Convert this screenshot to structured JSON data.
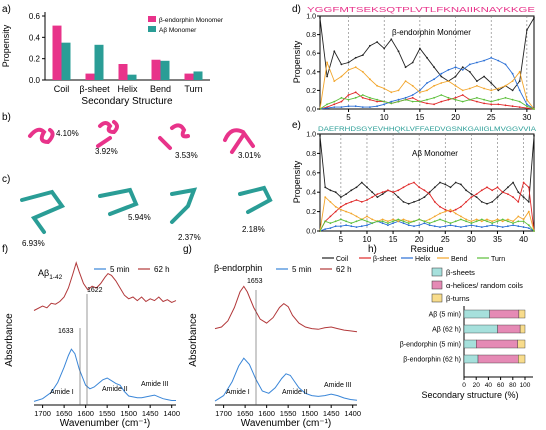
{
  "panel_labels": {
    "a": "a)",
    "b": "b)",
    "c": "c)",
    "d": "d)",
    "e": "e)",
    "f": "f)",
    "g": "g)",
    "h": "h)"
  },
  "colors": {
    "pink": "#e8338a",
    "teal": "#2a9d96",
    "coil": "#222222",
    "sheet": "#e02828",
    "helix": "#2a6fd6",
    "bend": "#f2a52a",
    "turn": "#5cbf3a",
    "ftir_blue": "#3a86d8",
    "ftir_red": "#b2383a",
    "h_sheet": "#a6e0dc",
    "h_helix": "#e58ab5",
    "h_turn": "#f8dc8c"
  },
  "structures": {
    "b": [
      "4.10%",
      "3.92%",
      "3.53%",
      "3.01%"
    ],
    "c": [
      "6.93%",
      "5.94%",
      "2.37%",
      "2.18%"
    ]
  },
  "chart_data": [
    {
      "panel": "a",
      "type": "bar",
      "categories": [
        "Coil",
        "β-sheet",
        "Helix",
        "Bend",
        "Turn"
      ],
      "series": [
        {
          "name": "β-endorphin Monomer",
          "values": [
            0.51,
            0.06,
            0.15,
            0.19,
            0.06
          ]
        },
        {
          "name": "Aβ Monomer",
          "values": [
            0.35,
            0.33,
            0.05,
            0.18,
            0.08
          ]
        }
      ],
      "xlabel": "Secondary Structure",
      "ylabel": "Propensity",
      "yticks": [
        "0.0",
        "0.2",
        "0.4",
        "0.6"
      ],
      "ylim": [
        0,
        0.6
      ],
      "legend": "top-right"
    },
    {
      "panel": "d",
      "type": "line",
      "title": "β-endorphin Monomer",
      "sequence": "YGGFMTSEKSQTPLVTLFKNAIIKNAYKKGE",
      "xlabel": "",
      "ylabel": "Propensity",
      "xticks": [
        "5",
        "10",
        "15",
        "20",
        "25",
        "30"
      ],
      "yticks": [
        "0.0",
        "0.2",
        "0.4",
        "0.6",
        "0.8",
        "1.0"
      ],
      "xlim": [
        1,
        31
      ],
      "ylim": [
        0,
        1
      ],
      "series": [
        {
          "name": "Coil",
          "values": [
            0.98,
            0.35,
            0.62,
            0.48,
            0.5,
            0.55,
            0.58,
            0.68,
            0.72,
            0.65,
            0.75,
            0.62,
            0.45,
            0.5,
            0.65,
            0.55,
            0.45,
            0.35,
            0.3,
            0.35,
            0.45,
            0.4,
            0.3,
            0.35,
            0.28,
            0.2,
            0.25,
            0.2,
            0.3,
            0.85,
            0.98
          ]
        },
        {
          "name": "β-sheet",
          "values": [
            0,
            0.02,
            0.05,
            0.08,
            0.15,
            0.18,
            0.12,
            0.1,
            0.08,
            0.08,
            0.06,
            0.08,
            0.1,
            0.12,
            0.08,
            0.06,
            0.05,
            0.08,
            0.1,
            0.12,
            0.15,
            0.1,
            0.08,
            0.06,
            0.05,
            0.05,
            0.04,
            0.03,
            0.02,
            0.01,
            0
          ]
        },
        {
          "name": "Helix",
          "values": [
            0,
            0.01,
            0.02,
            0.02,
            0.03,
            0.03,
            0.02,
            0.02,
            0.03,
            0.05,
            0.08,
            0.1,
            0.12,
            0.15,
            0.2,
            0.28,
            0.32,
            0.38,
            0.42,
            0.45,
            0.42,
            0.48,
            0.5,
            0.52,
            0.55,
            0.52,
            0.48,
            0.38,
            0.2,
            0.05,
            0
          ]
        },
        {
          "name": "Bend",
          "values": [
            0,
            0.5,
            0.3,
            0.35,
            0.42,
            0.45,
            0.4,
            0.32,
            0.25,
            0.22,
            0.18,
            0.2,
            0.3,
            0.25,
            0.18,
            0.2,
            0.25,
            0.28,
            0.3,
            0.25,
            0.2,
            0.22,
            0.25,
            0.22,
            0.2,
            0.22,
            0.25,
            0.3,
            0.4,
            0.1,
            0
          ]
        },
        {
          "name": "Turn",
          "values": [
            0,
            0.05,
            0.08,
            0.12,
            0.1,
            0.12,
            0.15,
            0.12,
            0.1,
            0.08,
            0.06,
            0.08,
            0.1,
            0.08,
            0.08,
            0.1,
            0.12,
            0.15,
            0.12,
            0.1,
            0.08,
            0.1,
            0.12,
            0.1,
            0.08,
            0.1,
            0.12,
            0.1,
            0.08,
            0.03,
            0
          ]
        }
      ]
    },
    {
      "panel": "e",
      "type": "line",
      "title": "Aβ Monomer",
      "sequence": "DAEFRHDSGYEVHHQKLVFFAEDVGSNKGAIIGLMVGGVVIA",
      "xlabel": "Residue",
      "ylabel": "Propensity",
      "xticks": [
        "5",
        "10",
        "15",
        "20",
        "25",
        "30",
        "35",
        "40"
      ],
      "yticks": [
        "0.0",
        "0.2",
        "0.4",
        "0.6",
        "0.8",
        "1.0"
      ],
      "xlim": [
        1,
        42
      ],
      "ylim": [
        0,
        1
      ],
      "series": [
        {
          "name": "Coil",
          "values": [
            0.98,
            0.45,
            0.42,
            0.4,
            0.35,
            0.38,
            0.42,
            0.45,
            0.5,
            0.45,
            0.4,
            0.35,
            0.38,
            0.42,
            0.4,
            0.35,
            0.3,
            0.28,
            0.3,
            0.32,
            0.35,
            0.4,
            0.45,
            0.5,
            0.48,
            0.45,
            0.5,
            0.48,
            0.42,
            0.38,
            0.35,
            0.3,
            0.28,
            0.3,
            0.35,
            0.4,
            0.45,
            0.5,
            0.4,
            0.35,
            0.3,
            0.98
          ]
        },
        {
          "name": "β-sheet",
          "values": [
            0,
            0.1,
            0.15,
            0.2,
            0.25,
            0.28,
            0.3,
            0.32,
            0.3,
            0.32,
            0.35,
            0.38,
            0.4,
            0.42,
            0.4,
            0.42,
            0.45,
            0.48,
            0.5,
            0.45,
            0.42,
            0.38,
            0.3,
            0.25,
            0.22,
            0.2,
            0.22,
            0.25,
            0.3,
            0.35,
            0.38,
            0.42,
            0.45,
            0.42,
            0.45,
            0.4,
            0.38,
            0.35,
            0.3,
            0.5,
            0.45,
            0
          ]
        },
        {
          "name": "Helix",
          "values": [
            0,
            0.02,
            0.03,
            0.05,
            0.05,
            0.06,
            0.05,
            0.04,
            0.05,
            0.06,
            0.08,
            0.1,
            0.08,
            0.06,
            0.08,
            0.1,
            0.08,
            0.06,
            0.05,
            0.06,
            0.08,
            0.06,
            0.05,
            0.04,
            0.05,
            0.06,
            0.05,
            0.04,
            0.05,
            0.06,
            0.05,
            0.04,
            0.05,
            0.06,
            0.05,
            0.04,
            0.05,
            0.06,
            0.05,
            0.04,
            0.03,
            0
          ]
        },
        {
          "name": "Bend",
          "values": [
            0,
            0.35,
            0.3,
            0.25,
            0.22,
            0.2,
            0.18,
            0.15,
            0.12,
            0.15,
            0.12,
            0.1,
            0.12,
            0.1,
            0.12,
            0.1,
            0.12,
            0.1,
            0.1,
            0.12,
            0.1,
            0.12,
            0.15,
            0.18,
            0.2,
            0.22,
            0.18,
            0.15,
            0.12,
            0.1,
            0.12,
            0.1,
            0.12,
            0.1,
            0.12,
            0.1,
            0.12,
            0.1,
            0.15,
            0.12,
            0.2,
            0
          ]
        },
        {
          "name": "Turn",
          "values": [
            0,
            0.1,
            0.08,
            0.1,
            0.12,
            0.1,
            0.08,
            0.1,
            0.12,
            0.1,
            0.08,
            0.1,
            0.1,
            0.08,
            0.1,
            0.12,
            0.1,
            0.08,
            0.1,
            0.12,
            0.1,
            0.08,
            0.1,
            0.12,
            0.1,
            0.08,
            0.1,
            0.12,
            0.1,
            0.08,
            0.1,
            0.12,
            0.1,
            0.08,
            0.1,
            0.12,
            0.1,
            0.08,
            0.1,
            0.1,
            0.06,
            0
          ]
        }
      ],
      "legend": [
        "Coil",
        "β-sheet",
        "Helix",
        "Bend",
        "Turn"
      ],
      "legend_placement": "bottom"
    },
    {
      "panel": "f",
      "type": "line",
      "title": "Aβ1-42",
      "title_main": "Aβ",
      "title_sub": "1-42",
      "xlabel": "Wavenumber (cm⁻¹)",
      "ylabel": "Absorbance",
      "xticks": [
        "1700",
        "1650",
        "1600",
        "1550",
        "1500",
        "1450",
        "1400"
      ],
      "xlim": [
        1720,
        1390
      ],
      "legend": [
        "5 min",
        "62 h"
      ],
      "legend_placement": "top-right",
      "annotations": [
        "1622",
        "1633",
        "Amide I",
        "Amide II",
        "Amide III"
      ],
      "series": [
        {
          "name": "5 min",
          "x": [
            1720,
            1700,
            1680,
            1665,
            1650,
            1640,
            1633,
            1625,
            1615,
            1600,
            1590,
            1580,
            1570,
            1560,
            1550,
            1540,
            1530,
            1520,
            1510,
            1500,
            1490,
            1480,
            1470,
            1460,
            1450,
            1440,
            1430,
            1420,
            1410,
            1400,
            1390
          ],
          "values": [
            0.04,
            0.07,
            0.14,
            0.25,
            0.42,
            0.55,
            0.62,
            0.57,
            0.4,
            0.22,
            0.18,
            0.2,
            0.24,
            0.28,
            0.3,
            0.27,
            0.24,
            0.22,
            0.15,
            0.1,
            0.09,
            0.08,
            0.08,
            0.09,
            0.1,
            0.11,
            0.09,
            0.07,
            0.06,
            0.05,
            0.05
          ]
        },
        {
          "name": "62 h",
          "x": [
            1720,
            1700,
            1690,
            1680,
            1670,
            1660,
            1650,
            1640,
            1630,
            1622,
            1615,
            1605,
            1595,
            1585,
            1575,
            1565,
            1555,
            1548,
            1540,
            1530,
            1520,
            1510,
            1500,
            1490,
            1480,
            1470,
            1460,
            1450,
            1440,
            1430,
            1420,
            1410,
            1400,
            1390
          ],
          "values": [
            1.05,
            1.1,
            1.08,
            1.13,
            1.12,
            1.15,
            1.2,
            1.3,
            1.45,
            1.58,
            1.48,
            1.35,
            1.28,
            1.32,
            1.3,
            1.35,
            1.42,
            1.46,
            1.44,
            1.38,
            1.3,
            1.22,
            1.18,
            1.2,
            1.16,
            1.2,
            1.15,
            1.18,
            1.16,
            1.2,
            1.15,
            1.17,
            1.14,
            1.16
          ]
        }
      ]
    },
    {
      "panel": "g",
      "type": "line",
      "title": "β-endorphin",
      "xlabel": "Wavenumber (cm⁻¹)",
      "ylabel": "Absorbance",
      "xticks": [
        "1700",
        "1650",
        "1600",
        "1550",
        "1500",
        "1450",
        "1400"
      ],
      "xlim": [
        1720,
        1390
      ],
      "legend": [
        "5 min",
        "62 h"
      ],
      "legend_placement": "top-right",
      "annotations": [
        "1653",
        "Amide I",
        "Amide II",
        "Amide III"
      ],
      "series": [
        {
          "name": "5 min",
          "x": [
            1720,
            1700,
            1680,
            1665,
            1653,
            1640,
            1625,
            1610,
            1595,
            1580,
            1565,
            1555,
            1545,
            1535,
            1525,
            1510,
            1495,
            1480,
            1465,
            1450,
            1435,
            1420,
            1405,
            1390
          ],
          "values": [
            0.05,
            0.12,
            0.3,
            0.5,
            0.6,
            0.52,
            0.33,
            0.18,
            0.15,
            0.22,
            0.34,
            0.4,
            0.38,
            0.3,
            0.22,
            0.15,
            0.12,
            0.11,
            0.12,
            0.14,
            0.12,
            0.09,
            0.07,
            0.06
          ]
        },
        {
          "name": "62 h",
          "x": [
            1720,
            1705,
            1690,
            1675,
            1662,
            1653,
            1645,
            1630,
            1615,
            1600,
            1585,
            1570,
            1560,
            1550,
            1540,
            1525,
            1510,
            1495,
            1480,
            1465,
            1450,
            1435,
            1420,
            1405,
            1390
          ],
          "values": [
            0.98,
            1.0,
            1.08,
            1.25,
            1.45,
            1.52,
            1.45,
            1.25,
            1.1,
            1.05,
            1.12,
            1.25,
            1.3,
            1.26,
            1.15,
            1.05,
            1.0,
            0.98,
            0.97,
            0.99,
            1.0,
            0.98,
            0.96,
            0.95,
            0.94
          ]
        }
      ]
    },
    {
      "panel": "h",
      "type": "bar",
      "orientation": "horizontal",
      "stacked": true,
      "categories": [
        "Aβ (5 min)",
        "Aβ (62 h)",
        "β-endorphin (5 min)",
        "β-endorphin (62 h)"
      ],
      "series": [
        {
          "name": "β-sheets",
          "values": [
            42,
            55,
            20,
            23
          ]
        },
        {
          "name": "α-helices/ random coils",
          "values": [
            48,
            37,
            68,
            66
          ]
        },
        {
          "name": "β-turns",
          "values": [
            10,
            8,
            12,
            11
          ]
        }
      ],
      "xlabel": "Secondary structure (%)",
      "xticks": [
        "0",
        "20",
        "40",
        "60",
        "80",
        "100"
      ],
      "xlim": [
        0,
        100
      ],
      "legend": "top"
    }
  ]
}
